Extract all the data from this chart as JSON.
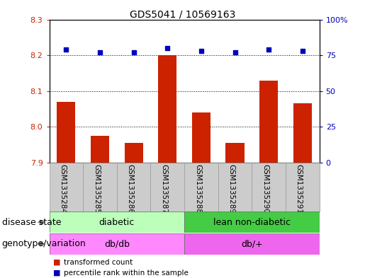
{
  "title": "GDS5041 / 10569163",
  "samples": [
    "GSM1335284",
    "GSM1335285",
    "GSM1335286",
    "GSM1335287",
    "GSM1335288",
    "GSM1335289",
    "GSM1335290",
    "GSM1335291"
  ],
  "bar_values": [
    8.07,
    7.975,
    7.955,
    8.2,
    8.04,
    7.955,
    8.13,
    8.065
  ],
  "dot_values": [
    79,
    77,
    77,
    80,
    78,
    77,
    79,
    78
  ],
  "ymin": 7.9,
  "ymax": 8.3,
  "y2min": 0,
  "y2max": 100,
  "yticks": [
    7.9,
    8.0,
    8.1,
    8.2,
    8.3
  ],
  "y2ticks": [
    0,
    25,
    50,
    75,
    100
  ],
  "bar_color": "#cc2200",
  "dot_color": "#0000bb",
  "disease_state_groups": [
    {
      "label": "diabetic",
      "start": 0,
      "end": 4,
      "color": "#bbffbb"
    },
    {
      "label": "lean non-diabetic",
      "start": 4,
      "end": 8,
      "color": "#44cc44"
    }
  ],
  "genotype_groups": [
    {
      "label": "db/db",
      "start": 0,
      "end": 4,
      "color": "#ff88ff"
    },
    {
      "label": "db/+",
      "start": 4,
      "end": 8,
      "color": "#ee66ee"
    }
  ],
  "legend_bar_label": "transformed count",
  "legend_dot_label": "percentile rank within the sample",
  "label_disease_state": "disease state",
  "label_genotype": "genotype/variation",
  "sample_bg_color": "#cccccc",
  "plot_bg_color": "#ffffff",
  "fig_bg_color": "#ffffff"
}
